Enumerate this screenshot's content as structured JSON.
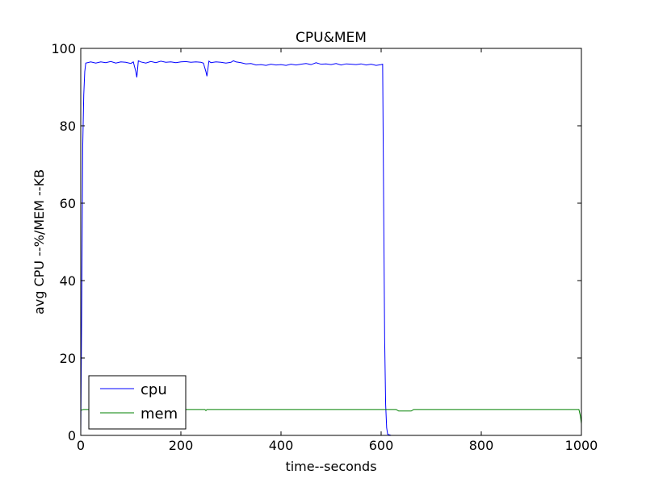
{
  "chart_data": {
    "type": "line",
    "title": "CPU&MEM",
    "xlabel": "time--seconds",
    "ylabel": "avg CPU --%/MEM --KB",
    "xlim": [
      0,
      1000
    ],
    "ylim": [
      0,
      100
    ],
    "xticks": [
      0,
      200,
      400,
      600,
      800,
      1000
    ],
    "yticks": [
      0,
      20,
      40,
      60,
      80,
      100
    ],
    "grid": false,
    "legend_position": "lower-left",
    "series": [
      {
        "name": "cpu",
        "color": "#0000ff",
        "points": [
          [
            0,
            0
          ],
          [
            2,
            35
          ],
          [
            4,
            75
          ],
          [
            6,
            88
          ],
          [
            8,
            94
          ],
          [
            10,
            96.2
          ],
          [
            20,
            96.5
          ],
          [
            30,
            96.2
          ],
          [
            40,
            96.5
          ],
          [
            50,
            96.3
          ],
          [
            60,
            96.6
          ],
          [
            70,
            96.2
          ],
          [
            80,
            96.5
          ],
          [
            90,
            96.4
          ],
          [
            100,
            96.1
          ],
          [
            105,
            96.5
          ],
          [
            110,
            94.0
          ],
          [
            112,
            92.5
          ],
          [
            115,
            96.8
          ],
          [
            120,
            96.5
          ],
          [
            130,
            96.2
          ],
          [
            140,
            96.6
          ],
          [
            150,
            96.3
          ],
          [
            160,
            96.7
          ],
          [
            170,
            96.4
          ],
          [
            180,
            96.5
          ],
          [
            190,
            96.3
          ],
          [
            200,
            96.5
          ],
          [
            210,
            96.6
          ],
          [
            220,
            96.4
          ],
          [
            230,
            96.5
          ],
          [
            240,
            96.4
          ],
          [
            245,
            96.2
          ],
          [
            250,
            94.0
          ],
          [
            252,
            92.8
          ],
          [
            256,
            96.7
          ],
          [
            260,
            96.3
          ],
          [
            270,
            96.5
          ],
          [
            280,
            96.4
          ],
          [
            290,
            96.2
          ],
          [
            300,
            96.4
          ],
          [
            305,
            96.8
          ],
          [
            310,
            96.5
          ],
          [
            320,
            96.3
          ],
          [
            330,
            96.0
          ],
          [
            340,
            96.1
          ],
          [
            350,
            95.7
          ],
          [
            360,
            95.8
          ],
          [
            370,
            95.6
          ],
          [
            380,
            95.9
          ],
          [
            390,
            95.7
          ],
          [
            400,
            95.8
          ],
          [
            410,
            95.6
          ],
          [
            420,
            95.9
          ],
          [
            430,
            95.7
          ],
          [
            440,
            95.9
          ],
          [
            450,
            96.1
          ],
          [
            460,
            95.8
          ],
          [
            470,
            96.3
          ],
          [
            480,
            95.9
          ],
          [
            490,
            96.0
          ],
          [
            500,
            95.8
          ],
          [
            510,
            96.1
          ],
          [
            520,
            95.7
          ],
          [
            530,
            96.0
          ],
          [
            540,
            95.9
          ],
          [
            550,
            95.8
          ],
          [
            560,
            96.0
          ],
          [
            570,
            95.7
          ],
          [
            580,
            95.9
          ],
          [
            590,
            95.6
          ],
          [
            600,
            95.8
          ],
          [
            603,
            95.9
          ],
          [
            605,
            60
          ],
          [
            607,
            25
          ],
          [
            609,
            8
          ],
          [
            611,
            2
          ],
          [
            613,
            0.3
          ],
          [
            620,
            0
          ],
          [
            650,
            0
          ],
          [
            700,
            0
          ],
          [
            800,
            0
          ],
          [
            900,
            0
          ],
          [
            1000,
            0
          ]
        ]
      },
      {
        "name": "mem",
        "color": "#008000",
        "points": [
          [
            0,
            6.5
          ],
          [
            5,
            6.7
          ],
          [
            100,
            6.7
          ],
          [
            200,
            6.7
          ],
          [
            248,
            6.7
          ],
          [
            250,
            6.4
          ],
          [
            252,
            6.7
          ],
          [
            300,
            6.7
          ],
          [
            400,
            6.7
          ],
          [
            500,
            6.7
          ],
          [
            600,
            6.7
          ],
          [
            630,
            6.7
          ],
          [
            635,
            6.3
          ],
          [
            660,
            6.3
          ],
          [
            665,
            6.7
          ],
          [
            700,
            6.7
          ],
          [
            800,
            6.7
          ],
          [
            900,
            6.7
          ],
          [
            995,
            6.7
          ],
          [
            998,
            5.0
          ],
          [
            1000,
            3.0
          ]
        ]
      }
    ]
  }
}
